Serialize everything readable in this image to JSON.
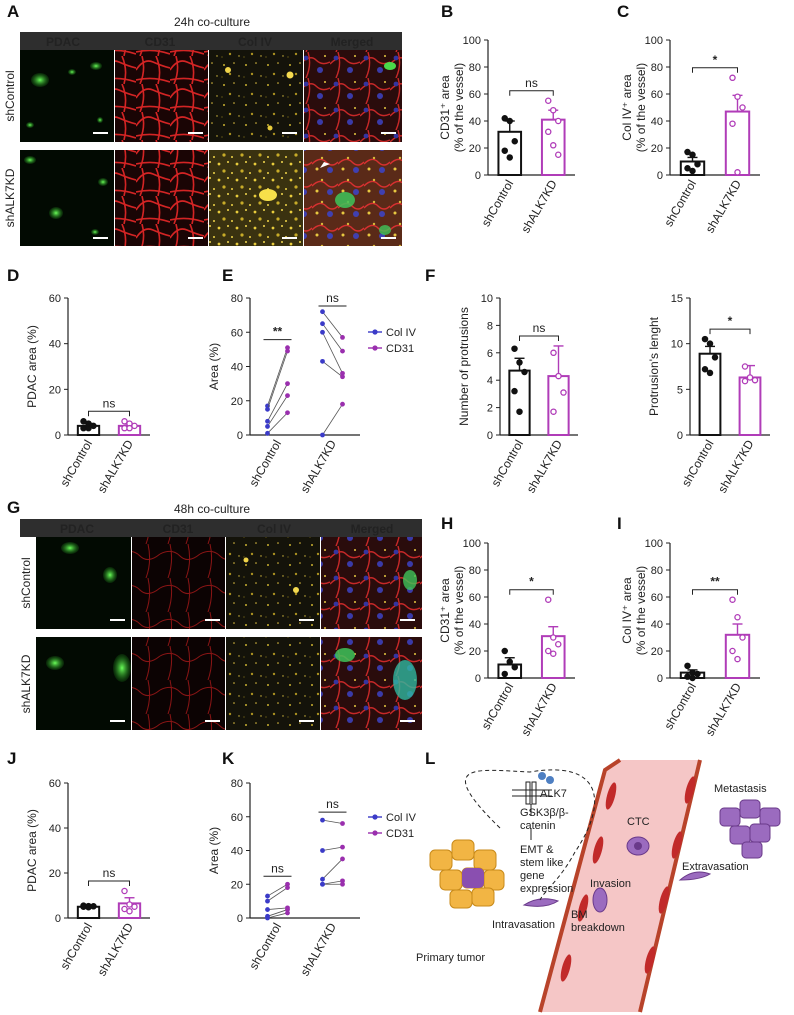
{
  "panel_letters": [
    "A",
    "B",
    "C",
    "D",
    "E",
    "F",
    "G",
    "H",
    "I",
    "J",
    "K",
    "L"
  ],
  "panelA": {
    "title": "24h co-culture",
    "headers": [
      "PDAC",
      "CD31",
      "Col IV",
      "Merged"
    ],
    "header_colors": [
      "#5fdc5a",
      "#e53a3a",
      "#f2c542",
      "#ffffff"
    ],
    "rows": [
      "shControl",
      "shALK7KD"
    ]
  },
  "panelG": {
    "title": "48h co-culture",
    "headers": [
      "PDAC",
      "CD31",
      "Col IV",
      "Merged"
    ],
    "header_colors": [
      "#5fdc5a",
      "#e53a3a",
      "#f2c542",
      "#ffffff"
    ],
    "rows": [
      "shControl",
      "shALK7KD"
    ]
  },
  "chart_data": [
    {
      "id": "B",
      "type": "bar",
      "categories": [
        "shControl",
        "shALK7KD"
      ],
      "values": [
        32,
        41
      ],
      "errors": [
        8,
        7
      ],
      "points": [
        [
          42,
          40,
          25,
          18,
          13
        ],
        [
          55,
          48,
          40,
          32,
          22,
          15
        ]
      ],
      "ylabel": [
        "CD31⁺ area",
        "(% of the vessel)"
      ],
      "ylim": [
        0,
        100
      ],
      "yticks": [
        0,
        20,
        40,
        60,
        80,
        100
      ],
      "sig": "ns",
      "colors": [
        "#111111",
        "#b03cb8"
      ]
    },
    {
      "id": "C",
      "type": "bar",
      "categories": [
        "shControl",
        "shALK7KD"
      ],
      "values": [
        10,
        47
      ],
      "errors": [
        3,
        12
      ],
      "points": [
        [
          17,
          15,
          8,
          5,
          3
        ],
        [
          72,
          58,
          50,
          38,
          2
        ]
      ],
      "ylabel": [
        "Col IV⁺ area",
        "(% of the vessel)"
      ],
      "ylim": [
        0,
        100
      ],
      "yticks": [
        0,
        20,
        40,
        60,
        80,
        100
      ],
      "sig": "*",
      "colors": [
        "#111111",
        "#b03cb8"
      ]
    },
    {
      "id": "D",
      "type": "bar",
      "categories": [
        "shControl",
        "shALK7KD"
      ],
      "values": [
        4,
        4
      ],
      "errors": [
        1,
        0.8
      ],
      "points": [
        [
          6,
          5,
          4,
          3,
          3
        ],
        [
          6,
          5,
          4,
          3,
          3
        ]
      ],
      "ylabel": [
        "PDAC area (%)"
      ],
      "ylim": [
        0,
        60
      ],
      "yticks": [
        0,
        20,
        40,
        60
      ],
      "sig": "ns",
      "colors": [
        "#111111",
        "#b03cb8"
      ]
    },
    {
      "id": "E",
      "type": "paired",
      "categories": [
        "shControl",
        "shALK7KD"
      ],
      "series": [
        {
          "name": "Col IV",
          "color": "#3b3bc8",
          "values": [
            [
              17,
              15,
              8,
              5,
              1
            ],
            [
              72,
              65,
              60,
              43,
              0
            ]
          ]
        },
        {
          "name": "CD31",
          "color": "#9a2fae",
          "values": [
            [
              51,
              49,
              30,
              23,
              13
            ],
            [
              57,
              49,
              36,
              34,
              18
            ]
          ]
        }
      ],
      "ylabel": [
        "Area (%)"
      ],
      "ylim": [
        0,
        80
      ],
      "yticks": [
        0,
        20,
        40,
        60,
        80
      ],
      "sig": [
        "**",
        "ns"
      ]
    },
    {
      "id": "F1",
      "type": "bar",
      "categories": [
        "shControl",
        "shALK7KD"
      ],
      "values": [
        4.7,
        4.3
      ],
      "errors": [
        0.9,
        2.2
      ],
      "points": [
        [
          6.3,
          5.3,
          4.6,
          3.2,
          1.7
        ],
        [
          6.0,
          4.3,
          3.1,
          1.7
        ]
      ],
      "ylabel": [
        "Number of protrusions"
      ],
      "ylim": [
        0,
        10
      ],
      "yticks": [
        0,
        2,
        4,
        6,
        8,
        10
      ],
      "sig": "ns",
      "colors": [
        "#111111",
        "#b03cb8"
      ]
    },
    {
      "id": "F2",
      "type": "bar",
      "categories": [
        "shControl",
        "shALK7KD"
      ],
      "values": [
        8.9,
        6.3
      ],
      "errors": [
        0.8,
        1.3
      ],
      "points": [
        [
          10.5,
          10,
          8.5,
          7.2,
          6.8
        ],
        [
          7.5,
          6.3,
          6.0,
          5.9
        ]
      ],
      "ylabel": [
        "Protrusion's lenght"
      ],
      "ylim": [
        0,
        15
      ],
      "yticks": [
        0,
        5,
        10,
        15
      ],
      "sig": "*",
      "colors": [
        "#111111",
        "#b03cb8"
      ]
    },
    {
      "id": "H",
      "type": "bar",
      "categories": [
        "shControl",
        "shALK7KD"
      ],
      "values": [
        10,
        31
      ],
      "errors": [
        5,
        7
      ],
      "points": [
        [
          20,
          12,
          8,
          3
        ],
        [
          58,
          30,
          25,
          20,
          18
        ]
      ],
      "ylabel": [
        "CD31⁺ area",
        "(% of the vessel)"
      ],
      "ylim": [
        0,
        100
      ],
      "yticks": [
        0,
        20,
        40,
        60,
        80,
        100
      ],
      "sig": "*",
      "colors": [
        "#111111",
        "#b03cb8"
      ]
    },
    {
      "id": "I",
      "type": "bar",
      "categories": [
        "shControl",
        "shALK7KD"
      ],
      "values": [
        4,
        32
      ],
      "errors": [
        2,
        8
      ],
      "points": [
        [
          9,
          4,
          3,
          1,
          0
        ],
        [
          58,
          45,
          30,
          20,
          14
        ]
      ],
      "ylabel": [
        "Col IV⁺ area",
        "(% of the vessel)"
      ],
      "ylim": [
        0,
        100
      ],
      "yticks": [
        0,
        20,
        40,
        60,
        80,
        100
      ],
      "sig": "**",
      "colors": [
        "#111111",
        "#b03cb8"
      ]
    },
    {
      "id": "J",
      "type": "bar",
      "categories": [
        "shControl",
        "shALK7KD"
      ],
      "values": [
        5,
        6.5
      ],
      "errors": [
        0.4,
        2.5
      ],
      "points": [
        [
          5.5,
          5.3,
          5.2,
          5,
          4.8
        ],
        [
          12,
          6,
          5,
          4,
          3
        ]
      ],
      "ylabel": [
        "PDAC area (%)"
      ],
      "ylim": [
        0,
        60
      ],
      "yticks": [
        0,
        20,
        40,
        60
      ],
      "sig": "ns",
      "colors": [
        "#111111",
        "#b03cb8"
      ]
    },
    {
      "id": "K",
      "type": "paired",
      "categories": [
        "shControl",
        "shALK7KD"
      ],
      "series": [
        {
          "name": "Col IV",
          "color": "#3b3bc8",
          "values": [
            [
              13,
              10,
              5,
              1,
              0
            ],
            [
              58,
              40,
              23,
              20,
              20
            ]
          ]
        },
        {
          "name": "CD31",
          "color": "#9a2fae",
          "values": [
            [
              20,
              18,
              6,
              5,
              3
            ],
            [
              56,
              42,
              35,
              22,
              20
            ]
          ]
        }
      ],
      "ylabel": [
        "Area (%)"
      ],
      "ylim": [
        0,
        80
      ],
      "yticks": [
        0,
        20,
        40,
        60,
        80
      ],
      "sig": [
        "ns",
        "ns"
      ]
    }
  ],
  "schematic": {
    "labels": [
      "ALK7",
      "GSK3β/β-",
      "catenin",
      "EMT &",
      "stem like",
      "gene",
      "expression",
      "CTC",
      "Metastasis",
      "Invasion",
      "Extravasation",
      "BM",
      "breakdown",
      "Intravasation",
      "Primary tumor"
    ]
  }
}
